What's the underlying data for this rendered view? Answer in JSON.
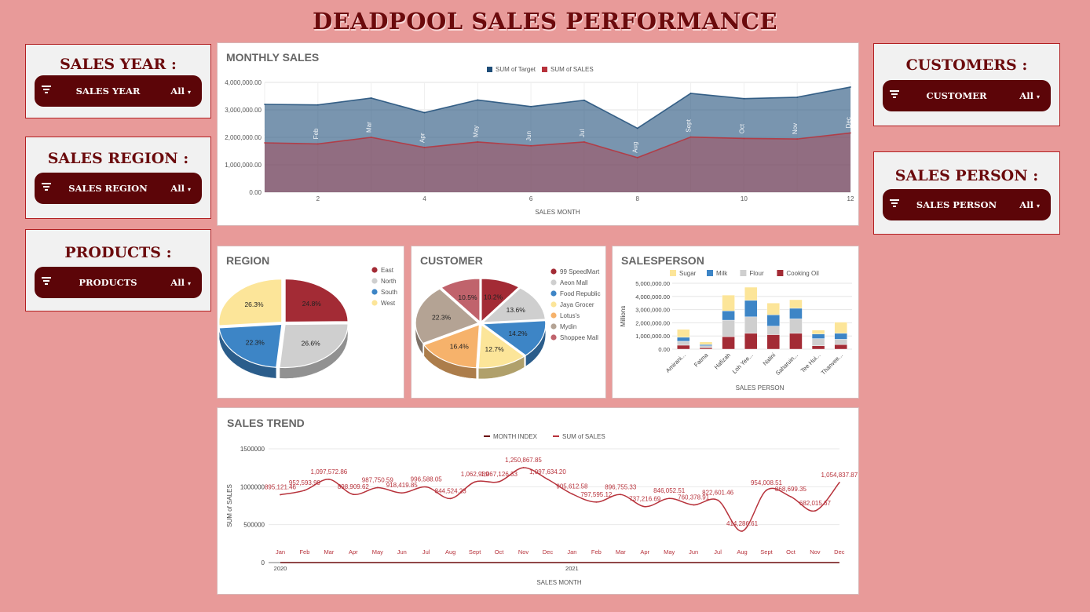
{
  "title": "DEADPOOL SALES PERFORMANCE",
  "filters": {
    "year": {
      "label": "SALES YEAR :",
      "pill": "SALES YEAR",
      "value": "All"
    },
    "region": {
      "label": "SALES REGION :",
      "pill": "SALES REGION",
      "value": "All"
    },
    "products": {
      "label": "PRODUCTS :",
      "pill": "PRODUCTS",
      "value": "All"
    },
    "customers": {
      "label": "CUSTOMERS :",
      "pill": "CUSTOMER",
      "value": "All"
    },
    "salesperson": {
      "label": "SALES PERSON :",
      "pill": "SALES PERSON",
      "value": "All"
    }
  },
  "panels": {
    "monthly": "MONTHLY SALES",
    "region": "REGION",
    "customer": "CUSTOMER",
    "salesperson": "SALESPERSON",
    "trend": "SALES TREND"
  },
  "colors": {
    "dark_red": "#5c0508",
    "brand": "#6b0a0c",
    "background": "#e89a99"
  },
  "chart_data": [
    {
      "id": "monthly_sales",
      "type": "area",
      "title": "MONTHLY SALES",
      "xlabel": "SALES MONTH",
      "ylabel": "",
      "x": [
        1,
        2,
        3,
        4,
        5,
        6,
        7,
        8,
        9,
        10,
        11,
        12
      ],
      "x_ticks": [
        2,
        4,
        6,
        8,
        10,
        12
      ],
      "point_labels": [
        "Jan",
        "Feb",
        "Mar",
        "Apr",
        "May",
        "Jun",
        "Jul",
        "Aug",
        "Sept",
        "Oct",
        "Nov",
        "Dec"
      ],
      "ylim": [
        0,
        4000000
      ],
      "y_ticks": [
        "0.00",
        "1,000,000.00",
        "2,000,000.00",
        "3,000,000.00",
        "4,000,000.00"
      ],
      "legend": "top",
      "grid": true,
      "series": [
        {
          "name": "SUM of Target",
          "color": "#1f4e79",
          "values": [
            3200000,
            3180000,
            3430000,
            2900000,
            3360000,
            3120000,
            3350000,
            2330000,
            3600000,
            3410000,
            3460000,
            3830000
          ]
        },
        {
          "name": "SUM of SALES",
          "color": "#b7323b",
          "values": [
            1800000,
            1760000,
            2000000,
            1630000,
            1830000,
            1690000,
            1830000,
            1260000,
            2010000,
            1960000,
            1940000,
            2160000
          ]
        }
      ]
    },
    {
      "id": "region",
      "type": "pie",
      "title": "REGION",
      "legend": "right",
      "slices": [
        {
          "name": "East",
          "value": 24.8,
          "label": "24.8%",
          "color": "#a32b35"
        },
        {
          "name": "North",
          "value": 26.6,
          "label": "26.6%",
          "color": "#cfcfcf"
        },
        {
          "name": "South",
          "value": 22.3,
          "label": "22.3%",
          "color": "#3d85c6"
        },
        {
          "name": "West",
          "value": 26.3,
          "label": "26.3%",
          "color": "#fce599"
        }
      ]
    },
    {
      "id": "customer",
      "type": "pie",
      "title": "CUSTOMER",
      "legend": "right",
      "slices": [
        {
          "name": "99 SpeedMart",
          "value": 10.2,
          "label": "10.2%",
          "color": "#a32b35"
        },
        {
          "name": "Aeon Mall",
          "value": 13.6,
          "label": "13.6%",
          "color": "#cfcfcf"
        },
        {
          "name": "Food Republic",
          "value": 14.2,
          "label": "14.2%",
          "color": "#3d85c6"
        },
        {
          "name": "Jaya Grocer",
          "value": 12.7,
          "label": "12.7%",
          "color": "#fce599"
        },
        {
          "name": "Lotus's",
          "value": 16.4,
          "label": "16.4%",
          "color": "#f6b26b"
        },
        {
          "name": "Mydin",
          "value": 22.3,
          "label": "22.3%",
          "color": "#b4a394"
        },
        {
          "name": "Shoppee Mall",
          "value": 10.5,
          "label": "10.5%",
          "color": "#c0636c"
        }
      ]
    },
    {
      "id": "salesperson",
      "type": "bar",
      "title": "SALESPERSON",
      "stacked": true,
      "xlabel": "SALES PERSON",
      "ylabel": "Millions",
      "ylim": [
        0,
        5000000
      ],
      "y_ticks": [
        "0.00",
        "1,000,000.00",
        "2,000,000.00",
        "3,000,000.00",
        "4,000,000.00",
        "5,000,000.00"
      ],
      "legend": "top",
      "categories": [
        "Amirani...",
        "Fatma",
        "Hafizah",
        "Loh Yee...",
        "Nalini",
        "Saharuin...",
        "Tee Hui...",
        "Thanvee..."
      ],
      "series": [
        {
          "name": "Cooking Oil",
          "color": "#a32b35",
          "values": [
            300000,
            100000,
            950000,
            1200000,
            1100000,
            1200000,
            250000,
            350000
          ]
        },
        {
          "name": "Flour",
          "color": "#cfcfcf",
          "values": [
            300000,
            150000,
            1250000,
            1250000,
            650000,
            1100000,
            550000,
            400000
          ]
        },
        {
          "name": "Milk",
          "color": "#3d85c6",
          "values": [
            300000,
            100000,
            700000,
            1250000,
            850000,
            800000,
            350000,
            450000
          ]
        },
        {
          "name": "Sugar",
          "color": "#fce599",
          "values": [
            600000,
            200000,
            1200000,
            1000000,
            900000,
            650000,
            300000,
            850000
          ]
        }
      ]
    },
    {
      "id": "sales_trend",
      "type": "line",
      "title": "SALES TREND",
      "xlabel": "SALES MONTH",
      "ylabel": "SUM of SALES",
      "ylim": [
        0,
        1500000
      ],
      "y_ticks": [
        "0",
        "500000",
        "1000000",
        "1500000"
      ],
      "legend": "top",
      "grid": true,
      "categories": [
        "Jan",
        "Feb",
        "Mar",
        "Apr",
        "May",
        "Jun",
        "Jul",
        "Aug",
        "Sept",
        "Oct",
        "Nov",
        "Dec",
        "Jan",
        "Feb",
        "Mar",
        "Apr",
        "May",
        "Jun",
        "Jul",
        "Aug",
        "Sept",
        "Oct",
        "Nov",
        "Dec"
      ],
      "years": [
        "2020",
        "2021"
      ],
      "series": [
        {
          "name": "MONTH INDEX",
          "color": "#6b0a0c",
          "values": [
            1,
            2,
            3,
            4,
            5,
            6,
            7,
            8,
            9,
            10,
            11,
            12,
            13,
            14,
            15,
            16,
            17,
            18,
            19,
            20,
            21,
            22,
            23,
            24
          ]
        },
        {
          "name": "SUM of SALES",
          "color": "#b7323b",
          "values": [
            895121.46,
            952593.99,
            1097572.86,
            898909.62,
            987750.59,
            918419.85,
            996588.05,
            844524.23,
            1062939,
            1067126.33,
            1250867.85,
            1097634.2,
            905612.58,
            797595.12,
            896755.33,
            737216.69,
            846052.51,
            760378.91,
            822601.46,
            414286.61,
            954008.51,
            868699.35,
            682015.67,
            1054837.87
          ],
          "labels": [
            "895,121.46",
            "952,593.99",
            "1,097,572.86",
            "898,909.62",
            "987,750.59",
            "918,419.85",
            "996,588.05",
            "844,524.23",
            "1,062,939",
            "1,067,126.33",
            "1,250,867.85",
            "1,097,634.20",
            "905,612.58",
            "797,595.12",
            "896,755.33",
            "737,216.69",
            "846,052.51",
            "760,378.91",
            "822,601.46",
            "414,286.61",
            "954,008.51",
            "868,699.35",
            "682,015.67",
            "1,054,837.87"
          ]
        }
      ]
    }
  ]
}
